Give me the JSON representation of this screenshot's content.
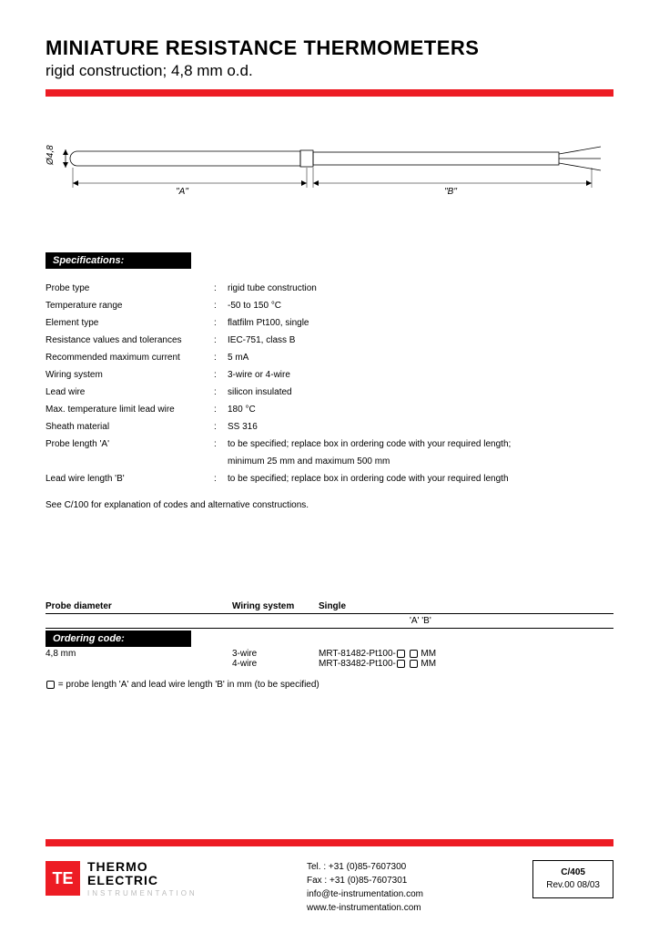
{
  "header": {
    "title": "MINIATURE RESISTANCE THERMOMETERS",
    "subtitle": "rigid construction; 4,8 mm o.d.",
    "accent_color": "#ed1c24"
  },
  "diagram": {
    "diameter_label": "Ø4,8",
    "dim_a_label": "\"A\"",
    "dim_b_label": "\"B\"",
    "line_color": "#000000",
    "label_fontsize": 10
  },
  "specifications": {
    "header": "Specifications:",
    "rows": [
      {
        "label": "Probe type",
        "value": "rigid tube construction"
      },
      {
        "label": "Temperature range",
        "value": "-50 to 150 °C"
      },
      {
        "label": "Element type",
        "value": "flatfilm Pt100, single"
      },
      {
        "label": "Resistance values and tolerances",
        "value": "IEC-751, class B"
      },
      {
        "label": "Recommended maximum current",
        "value": "5 mA"
      },
      {
        "label": "Wiring system",
        "value": "3-wire or 4-wire"
      },
      {
        "label": "Lead wire",
        "value": "silicon insulated"
      },
      {
        "label": "Max. temperature limit lead wire",
        "value": "180 °C"
      },
      {
        "label": "Sheath material",
        "value": "SS 316"
      },
      {
        "label": "Probe length 'A'",
        "value": "to be specified; replace box in ordering code with your required length;"
      },
      {
        "label": "",
        "value": "minimum 25 mm and maximum 500 mm"
      },
      {
        "label": "Lead wire length 'B'",
        "value": "to be specified; replace box in ordering code with your required length"
      }
    ],
    "note": "See C/100 for explanation of codes and alternative constructions."
  },
  "ordering": {
    "col_headers": {
      "c1": "Probe diameter",
      "c2": "Wiring system",
      "c3": "Single"
    },
    "sub_ab": "'A'  'B'",
    "code_header": "Ordering code:",
    "diameter": "4,8 mm",
    "rows": [
      {
        "wiring": "3-wire",
        "code_prefix": "MRT-81482-Pt100-",
        "code_suffix": " MM"
      },
      {
        "wiring": "4-wire",
        "code_prefix": "MRT-83482-Pt100-",
        "code_suffix": " MM"
      }
    ],
    "legend": "= probe length 'A' and lead wire length 'B' in mm (to be specified)"
  },
  "footer": {
    "logo_mark": "TE",
    "logo_line1": "THERMO",
    "logo_line2": "ELECTRIC",
    "logo_sub": "INSTRUMENTATION",
    "contact": {
      "tel": "Tel. : +31 (0)85-7607300",
      "fax": "Fax : +31 (0)85-7607301",
      "email": "info@te-instrumentation.com",
      "web": "www.te-instrumentation.com"
    },
    "docref": {
      "main": "C/405",
      "rev": "Rev.00   08/03"
    }
  }
}
